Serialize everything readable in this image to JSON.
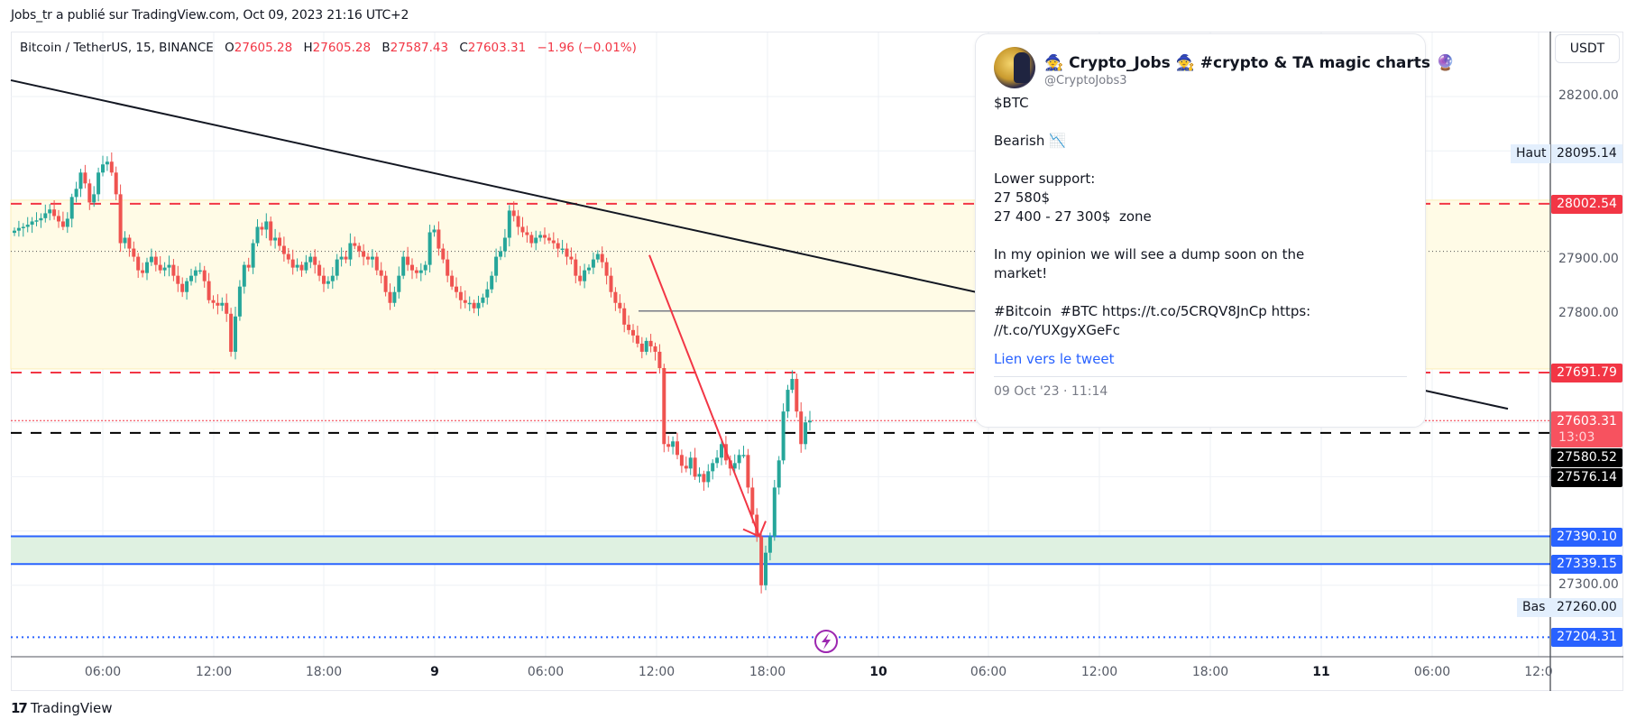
{
  "header": {
    "published_line": "Jobs_tr a publié sur TradingView.com, Oct 09, 2023 21:16 UTC+2"
  },
  "legend": {
    "symbol": "Bitcoin / TetherUS, 15, BINANCE",
    "open_label": "O",
    "open": "27605.28",
    "high_label": "H",
    "high": "27605.28",
    "low_label": "B",
    "low": "27587.43",
    "close_label": "C",
    "close": "27603.31",
    "change": "−1.96 (−0.01%)"
  },
  "price_axis": {
    "currency_button": "USDT",
    "ticks": [
      "28200.00",
      "27900.00",
      "27800.00",
      "27300.00"
    ],
    "high_tag": {
      "label": "Haut",
      "value": "28095.14"
    },
    "low_tag": {
      "label": "Bas",
      "value": "27260.00"
    },
    "tags": [
      {
        "value": "28002.54",
        "color": "#f23645"
      },
      {
        "value": "27691.79",
        "color": "#f23645"
      },
      {
        "value": "27603.31",
        "sub": "13:03",
        "color": "#f7525f"
      },
      {
        "value": "27580.52",
        "color": "#000000"
      },
      {
        "value": "27576.14",
        "color": "#000000"
      },
      {
        "value": "27390.10",
        "color": "#2962ff"
      },
      {
        "value": "27339.15",
        "color": "#2962ff"
      },
      {
        "value": "27204.31",
        "color": "#2962ff"
      }
    ]
  },
  "time_axis": {
    "labels": [
      "06:00",
      "12:00",
      "18:00",
      "9",
      "06:00",
      "12:00",
      "18:00",
      "10",
      "06:00",
      "12:00",
      "18:00",
      "11",
      "06:00",
      "12:0"
    ]
  },
  "tweet": {
    "display_name": "🧙 Crypto_Jobs 🧙 #crypto & TA magic charts 🔮",
    "handle": "@CryptoJobs3",
    "body": "$BTC\n\nBearish 📉\n\nLower support:\n27 580$\n27 400 - 27 300$  zone\n\nIn my opinion we will see a dump soon on the\nmarket!\n\n#Bitcoin  #BTC https://t.co/5CRQV8JnCp https:\n//t.co/YUXgyXGeFc",
    "link_label": "Lien vers le tweet",
    "date": "09 Oct '23 · 11:14"
  },
  "footer": {
    "brand": "TradingView",
    "logo_mark": "17"
  },
  "colors": {
    "up": "#26a69a",
    "down": "#ef5350",
    "resistance_dashed": "#f23645",
    "support_blue": "#2962ff",
    "zone_yellow": "#fffbe6",
    "zone_green": "#dff1e1",
    "trendline": "#131722",
    "arrow": "#f23645"
  },
  "chart_data": {
    "type": "candlestick",
    "symbol": "BTCUSDT",
    "interval": "15",
    "exchange": "BINANCE",
    "ylim": [
      27170,
      28290
    ],
    "annotations": {
      "resistance_zone": [
        27691.79,
        28002.54
      ],
      "support_zone": [
        27339.15,
        27390.1
      ],
      "dashed_black_level": 27580.52,
      "last_price_dotted": 27603.31,
      "blue_dotted_level": 27204.31,
      "gray_hline": 27805,
      "dotted_mid": 27915,
      "trendline": {
        "from": [
          0,
          28230
        ],
        "to": [
          1660,
          27625
        ]
      },
      "arrow": {
        "from": [
          720,
          27908
        ],
        "to": [
          842,
          27390
        ]
      }
    },
    "candles_close_path": [
      27953,
      27958,
      27960,
      27964,
      27970,
      27972,
      27976,
      27985,
      27992,
      27980,
      27970,
      27960,
      27975,
      28015,
      28030,
      28060,
      28040,
      28005,
      28020,
      28060,
      28075,
      28080,
      28060,
      28020,
      27930,
      27940,
      27920,
      27905,
      27880,
      27875,
      27895,
      27905,
      27890,
      27880,
      27885,
      27890,
      27870,
      27855,
      27840,
      27860,
      27870,
      27880,
      27880,
      27860,
      27825,
      27820,
      27815,
      27820,
      27800,
      27730,
      27795,
      27850,
      27890,
      27885,
      27930,
      27960,
      27955,
      27970,
      27935,
      27940,
      27925,
      27910,
      27900,
      27885,
      27890,
      27880,
      27895,
      27905,
      27890,
      27870,
      27855,
      27860,
      27870,
      27900,
      27905,
      27900,
      27930,
      27925,
      27915,
      27905,
      27900,
      27905,
      27880,
      27870,
      27840,
      27820,
      27840,
      27870,
      27905,
      27890,
      27880,
      27875,
      27880,
      27890,
      27950,
      27955,
      27920,
      27900,
      27870,
      27850,
      27840,
      27825,
      27820,
      27820,
      27810,
      27820,
      27830,
      27845,
      27870,
      27905,
      27915,
      27940,
      27990,
      27980,
      27960,
      27950,
      27945,
      27930,
      27940,
      27945,
      27940,
      27935,
      27930,
      27920,
      27920,
      27905,
      27900,
      27870,
      27860,
      27880,
      27885,
      27900,
      27910,
      27895,
      27870,
      27840,
      27820,
      27810,
      27780,
      27770,
      27760,
      27745,
      27730,
      27750,
      27740,
      27730,
      27700,
      27560,
      27555,
      27565,
      27540,
      27520,
      27515,
      27535,
      27500,
      27505,
      27490,
      27510,
      27525,
      27535,
      27560,
      27530,
      27515,
      27525,
      27540,
      27540,
      27480,
      27430,
      27390,
      27300,
      27360,
      27390,
      27480,
      27530,
      27620,
      27660,
      27680,
      27620,
      27560,
      27600,
      27603
    ]
  }
}
